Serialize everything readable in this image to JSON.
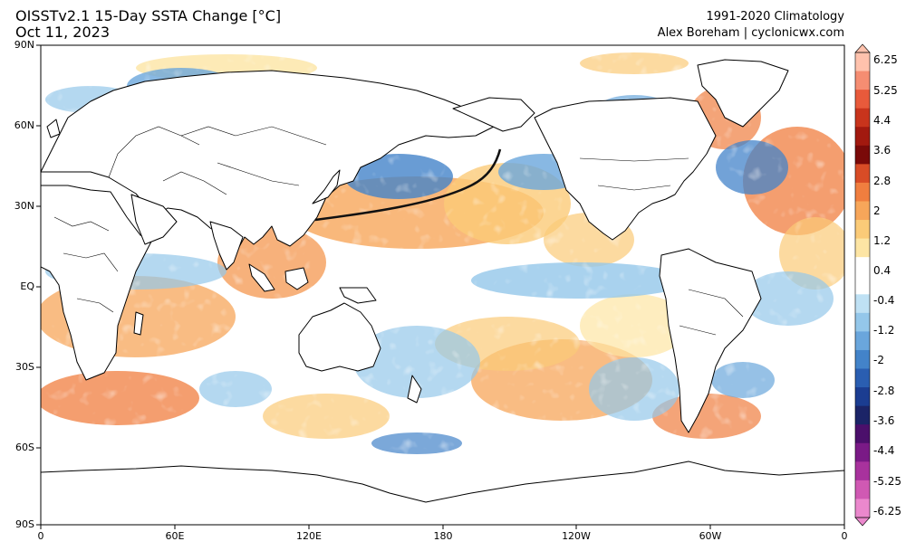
{
  "header": {
    "title": "OISSTv2.1 15-Day SSTA Change [°C]",
    "date": "Oct 11, 2023",
    "climatology": "1991-2020 Climatology",
    "credit": "Alex Boreham | cyclonicwx.com"
  },
  "axes": {
    "lat_labels": [
      "90N",
      "60N",
      "30N",
      "EQ",
      "30S",
      "60S",
      "90S"
    ],
    "lon_labels": [
      "0",
      "60E",
      "120E",
      "180",
      "120W",
      "60W",
      "0"
    ]
  },
  "colorbar": {
    "labels": [
      "6.25",
      "5.25",
      "4.4",
      "3.6",
      "2.8",
      "2",
      "1.2",
      "0.4",
      "-0.4",
      "-1.2",
      "-2",
      "-2.8",
      "-3.6",
      "-4.4",
      "-5.25",
      "-6.25"
    ],
    "colors": [
      "#ffc2ad",
      "#f58d72",
      "#e85a3b",
      "#c8341c",
      "#a2190f",
      "#7a0a09",
      "#d84c26",
      "#f07e3f",
      "#f7a65a",
      "#fbcb78",
      "#fde5a4",
      "#ffffff",
      "#ffffff",
      "#bfe1f4",
      "#94c7ea",
      "#6aa6dc",
      "#4383c9",
      "#2a5eb1",
      "#1b3d91",
      "#1b2467",
      "#4b0f6b",
      "#7a1a86",
      "#a8329d",
      "#d059b3",
      "#eb88cd"
    ]
  }
}
